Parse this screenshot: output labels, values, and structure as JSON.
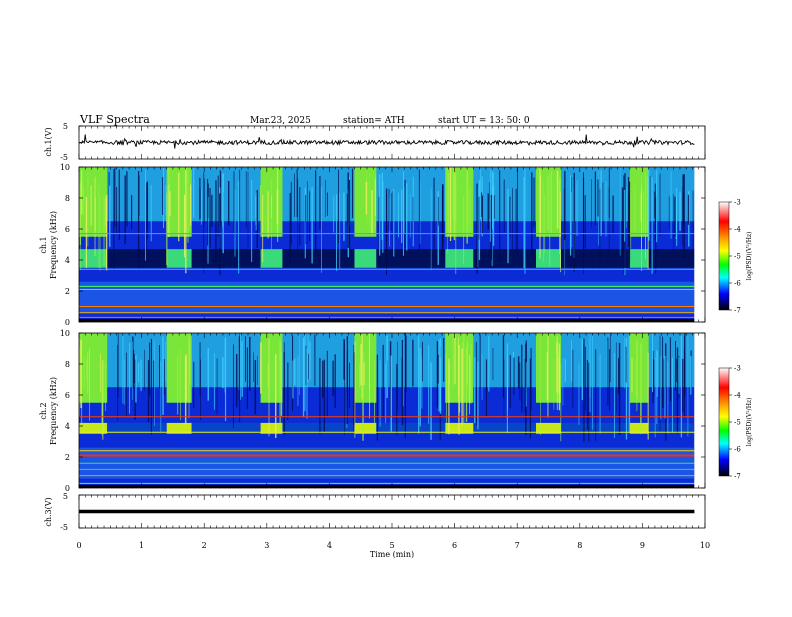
{
  "header": {
    "title": "VLF  Spectra",
    "date": "Mar.23, 2025",
    "station": "station= ATH",
    "start": "start  UT  =   13: 50: 0"
  },
  "panels": {
    "ch1_wave": {
      "ylabel": "ch.1(V)",
      "ticks": [
        "5",
        "-5"
      ]
    },
    "ch1_spec": {
      "ylabel_line1": "ch.1",
      "ylabel_line2": "Frequency  (kHz)",
      "ticks": [
        "10",
        "8",
        "6",
        "4",
        "2",
        "0"
      ]
    },
    "ch2_spec": {
      "ylabel_line1": "ch.2",
      "ylabel_line2": "Frequency  (kHz)",
      "ticks": [
        "10",
        "8",
        "6",
        "4",
        "2",
        "0"
      ]
    },
    "ch3_wave": {
      "ylabel": "ch.3(V)",
      "ticks": [
        "5",
        "-5"
      ]
    }
  },
  "xaxis": {
    "label": "Time  (min)",
    "ticks": [
      "0",
      "1",
      "2",
      "3",
      "4",
      "5",
      "6",
      "7",
      "8",
      "9",
      "10"
    ]
  },
  "colorbar": {
    "label": "log(PSD)(V²/Hz)",
    "ticks": [
      "-3",
      "-4",
      "-5",
      "-6",
      "-7"
    ],
    "colors": [
      "#ffffff",
      "#ff0000",
      "#ffff00",
      "#00ff00",
      "#00ffff",
      "#0000ff",
      "#000000"
    ]
  },
  "chart_data": {
    "type": "heatmap",
    "title": "VLF  Spectra",
    "xlabel": "Time  (min)",
    "xlim": [
      0,
      10
    ],
    "data_end_min": 9.83,
    "spectrogram_ylim_khz": [
      0,
      10
    ],
    "waveform_ylim_v": [
      -5,
      5
    ],
    "colorbar_range_log_psd": [
      -7,
      -3
    ],
    "transmitter_on_intervals_min": [
      [
        0.0,
        0.45
      ],
      [
        1.4,
        1.8
      ],
      [
        2.9,
        3.25
      ],
      [
        4.4,
        4.75
      ],
      [
        5.85,
        6.3
      ],
      [
        7.3,
        7.7
      ],
      [
        8.8,
        9.1
      ]
    ],
    "band_khz_ch1": [
      3.5,
      4.7
    ],
    "band_khz_ch2": [
      3.5,
      4.2
    ],
    "ch1_wave_level_v": 0,
    "ch3_wave_level_v": 0
  }
}
